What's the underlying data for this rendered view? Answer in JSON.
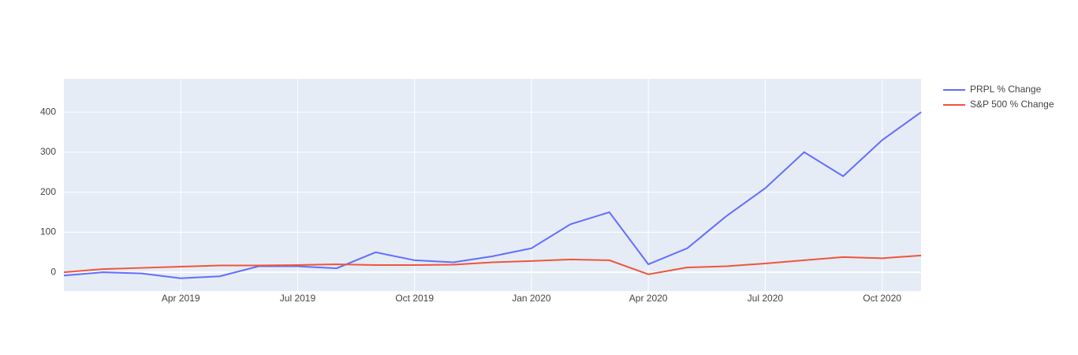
{
  "chart_data": {
    "type": "line",
    "x": [
      "2019-01",
      "2019-02",
      "2019-03",
      "2019-04",
      "2019-05",
      "2019-06",
      "2019-07",
      "2019-08",
      "2019-09",
      "2019-10",
      "2019-11",
      "2019-12",
      "2020-01",
      "2020-02",
      "2020-03",
      "2020-04",
      "2020-05",
      "2020-06",
      "2020-07",
      "2020-08",
      "2020-09",
      "2020-10",
      "2020-11"
    ],
    "series": [
      {
        "name": "PRPL % Change",
        "color": "#636efa",
        "values": [
          -8,
          0,
          -3,
          -15,
          -10,
          15,
          15,
          10,
          50,
          30,
          25,
          40,
          60,
          120,
          150,
          20,
          60,
          140,
          210,
          300,
          240,
          330,
          400
        ]
      },
      {
        "name": "S&P 500 % Change",
        "color": "#ef553b",
        "values": [
          0,
          8,
          11,
          14,
          17,
          17,
          18,
          20,
          18,
          18,
          19,
          25,
          28,
          32,
          30,
          -5,
          12,
          15,
          22,
          30,
          38,
          35,
          42
        ]
      }
    ],
    "xlim": [
      "2019-01",
      "2020-11"
    ],
    "xticks": [
      {
        "value": "2019-04",
        "label": "Apr 2019"
      },
      {
        "value": "2019-07",
        "label": "Jul 2019"
      },
      {
        "value": "2019-10",
        "label": "Oct 2019"
      },
      {
        "value": "2020-01",
        "label": "Jan 2020"
      },
      {
        "value": "2020-04",
        "label": "Apr 2020"
      },
      {
        "value": "2020-07",
        "label": "Jul 2020"
      },
      {
        "value": "2020-10",
        "label": "Oct 2020"
      }
    ],
    "ylim": [
      -47,
      483
    ],
    "yticks": [
      0,
      100,
      200,
      300,
      400
    ],
    "grid": true,
    "legend": "right"
  }
}
